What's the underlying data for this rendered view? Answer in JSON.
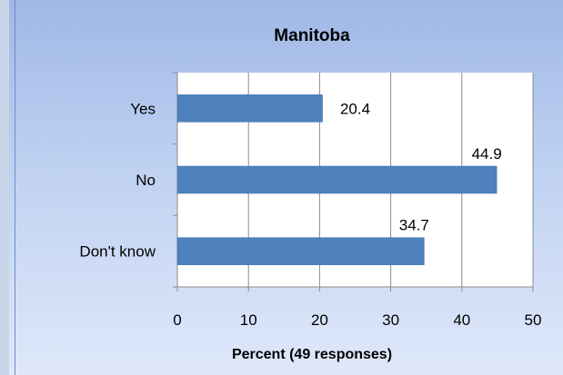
{
  "chart_data": {
    "type": "bar",
    "orientation": "horizontal",
    "title": "Manitoba",
    "categories": [
      "Yes",
      "No",
      "Don't know"
    ],
    "values": [
      20.4,
      44.9,
      34.7
    ],
    "data_labels": [
      "20.4",
      "44.9",
      "34.7"
    ],
    "xlabel": "Percent (49 responses)",
    "ylabel": "",
    "xlim": [
      0,
      50
    ],
    "xticks": [
      "0",
      "10",
      "20",
      "30",
      "40",
      "50"
    ],
    "grid": "vertical",
    "bar_color": "#4f81bd",
    "plot_background": "#ffffff",
    "grid_color": "#8c8c8c"
  }
}
